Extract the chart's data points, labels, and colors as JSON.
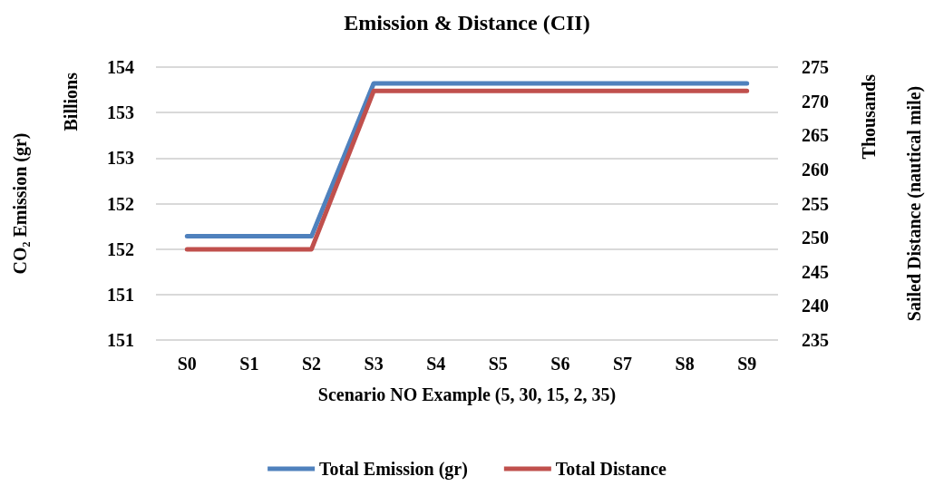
{
  "chart_data": {
    "type": "line",
    "title": "Emission & Distance (CII)",
    "xlabel": "Scenario NO Example (5, 30, 15, 2, 35)",
    "ylabel": "CO₂ Emission (gr)",
    "y2label": "Sailed Distance (nautical mile)",
    "annotations": [
      "Billions",
      "Thousands"
    ],
    "categories": [
      "S0",
      "S1",
      "S2",
      "S3",
      "S4",
      "S5",
      "S6",
      "S7",
      "S8",
      "S9"
    ],
    "series": [
      {
        "name": "Total Emission (gr)",
        "color": "#4f81bd",
        "values": [
          151.64,
          151.64,
          151.64,
          153.32,
          153.32,
          153.32,
          153.32,
          153.32,
          153.32,
          153.32
        ]
      },
      {
        "name": "Total Distance",
        "color": "#c0504d",
        "axis": "y2",
        "values": [
          248.3,
          248.3,
          248.3,
          271.5,
          271.5,
          271.5,
          271.5,
          271.5,
          271.5,
          271.5
        ]
      }
    ],
    "ylim": [
      150.5,
      153.5
    ],
    "yticks": [
      {
        "value": 150.5,
        "label": "151"
      },
      {
        "value": 151,
        "label": "151"
      },
      {
        "value": 151.5,
        "label": "152"
      },
      {
        "value": 152,
        "label": "152"
      },
      {
        "value": 152.5,
        "label": "153"
      },
      {
        "value": 153,
        "label": "153"
      },
      {
        "value": 153.5,
        "label": "154"
      }
    ],
    "y2lim": [
      235,
      275
    ],
    "y2ticks": [
      235,
      240,
      245,
      250,
      255,
      260,
      265,
      270,
      275
    ],
    "grid": "y",
    "legend": "bottom",
    "marker": "none",
    "line_style": "solid"
  }
}
